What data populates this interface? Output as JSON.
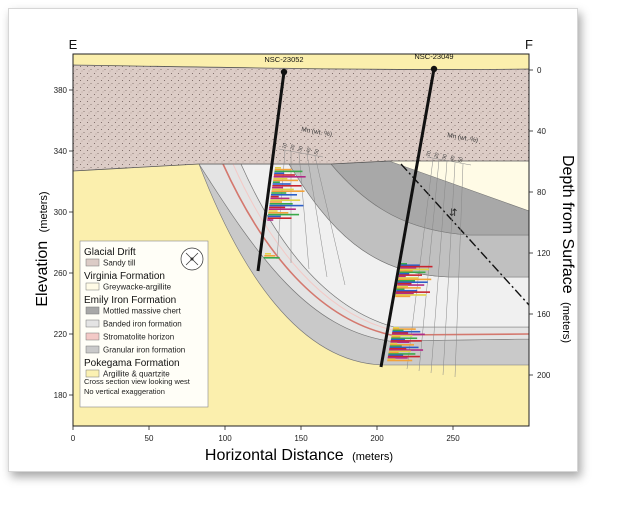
{
  "section": {
    "left_label": "E",
    "right_label": "F",
    "x_axis_title": "Horizontal Distance",
    "x_axis_units": "(meters)",
    "x_ticks": [
      "0",
      "50",
      "100",
      "150",
      "200",
      "250"
    ],
    "left_axis_title": "Elevation",
    "left_axis_units": "(meters)",
    "left_ticks": [
      "380",
      "340",
      "300",
      "260",
      "220",
      "180"
    ],
    "right_axis_title": "Depth from Surface",
    "right_axis_units": "(meters)",
    "right_ticks": [
      "0",
      "40",
      "80",
      "120",
      "160",
      "200"
    ]
  },
  "drillholes": [
    {
      "name": "NSC-23052",
      "mn_label": "Mn (wt. %)",
      "mn_ticks": [
        "10",
        "20",
        "30",
        "40",
        "50"
      ]
    },
    {
      "name": "NSC-23049",
      "mn_label": "Mn (wt. %)",
      "mn_ticks": [
        "10",
        "20",
        "30",
        "40",
        "50"
      ]
    }
  ],
  "legend": {
    "groups": [
      {
        "title": "Glacial Drift",
        "items": [
          {
            "label": "Sandy till",
            "color": "#dcccc6"
          }
        ]
      },
      {
        "title": "Virginia Formation",
        "items": [
          {
            "label": "Greywacke-argillite",
            "color": "#fffbe6"
          }
        ]
      },
      {
        "title": "Emily Iron Formation",
        "items": [
          {
            "label": "Mottled massive chert",
            "color": "#a8a8a8"
          },
          {
            "label": "Banded iron formation",
            "color": "#e4e4e4"
          },
          {
            "label": "Stromatolite horizon",
            "color": "#f3c9c6"
          },
          {
            "label": "Granular iron formation",
            "color": "#c9c9c9"
          }
        ]
      },
      {
        "title": "Pokegama Formation",
        "items": [
          {
            "label": "Argillite & quartzite",
            "color": "#fbf1b2"
          }
        ]
      }
    ],
    "notes": [
      "Cross section view looking west",
      "No vertical exaggeration"
    ]
  },
  "colors": {
    "till": "#dcccc6",
    "argillite_quartzite": "#fbefad",
    "greywacke": "#fffbe6",
    "chert": "#a8a8a8",
    "banded": "#e4e4e4",
    "granular": "#c9c9c9",
    "stromatolite": "#d4786e",
    "drillhole": "#111111"
  }
}
